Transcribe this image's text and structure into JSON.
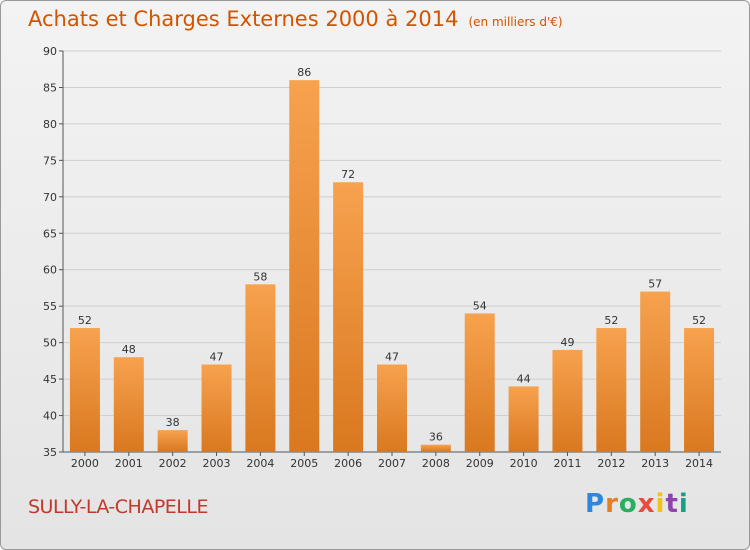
{
  "header": {
    "title": "Achats et Charges Externes 2000 à 2014",
    "unit": "(en milliers d'€)"
  },
  "footer": {
    "commune": "SULLY-LA-CHAPELLE",
    "logo_text": "Proxiti"
  },
  "colors": {
    "title": "#d35400",
    "bar_light": "#f7a24f",
    "bar_dark": "#d9781f",
    "commune": "#c0392b"
  },
  "chart_data": {
    "type": "bar",
    "title": "Achats et Charges Externes 2000 à 2014",
    "subtitle": "(en milliers d'€)",
    "categories": [
      "2000",
      "2001",
      "2002",
      "2003",
      "2004",
      "2005",
      "2006",
      "2007",
      "2008",
      "2009",
      "2010",
      "2011",
      "2012",
      "2013",
      "2014"
    ],
    "values": [
      52,
      48,
      38,
      47,
      58,
      86,
      72,
      47,
      36,
      54,
      44,
      49,
      52,
      57,
      52
    ],
    "ylim": [
      35,
      90
    ],
    "yticks": [
      35,
      40,
      45,
      50,
      55,
      60,
      65,
      70,
      75,
      80,
      85,
      90
    ],
    "grid": true,
    "xlabel": "",
    "ylabel": ""
  }
}
